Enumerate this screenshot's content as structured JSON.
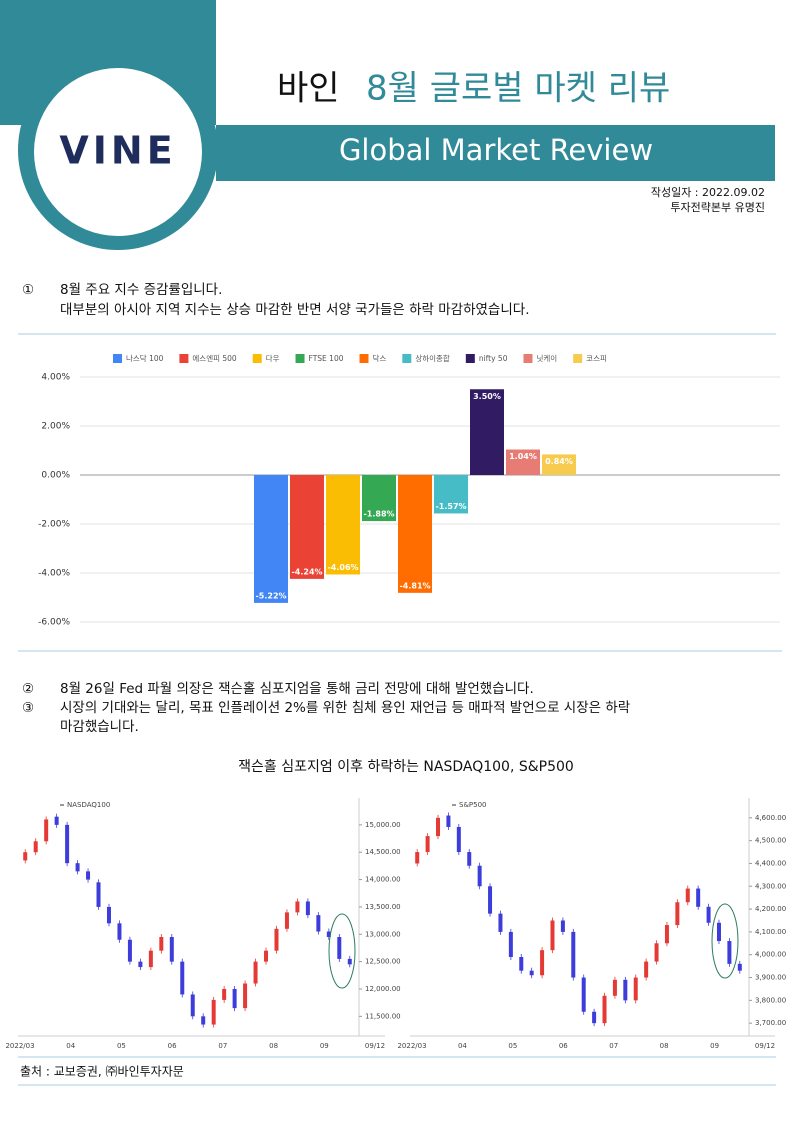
{
  "header": {
    "logo": "VINE",
    "title_prefix": "바인",
    "title": "8월 글로벌 마켓 리뷰",
    "subtitle": "Global Market Review",
    "date": "작성일자 : 2022.09.02",
    "author": "투자전략본부  유명진"
  },
  "section1": {
    "marker": "①",
    "lines": [
      "8월 주요 지수 증감률입니다.",
      "대부분의 아시아 지역 지수는  상승 마감한 반면 서양 국가들은 하락 마감하였습니다."
    ]
  },
  "section2": [
    {
      "marker": "②",
      "lines": [
        "8월 26일 Fed 파월 의장은 잭슨홀 심포지엄을 통해 금리 전망에 대해 발언했습니다."
      ]
    },
    {
      "marker": "③",
      "lines": [
        "시장의 기대와는 달리, 목표 인플레이션 2%를 위한 침체 용인 재언급 등 매파적 발언으로 시장은 하락",
        "마감했습니다."
      ]
    }
  ],
  "figure_title": "잭슨홀 심포지엄 이후 하락하는 NASDAQ100, S&P500",
  "source": "출처 : 교보증권, ㈜바인투자자문",
  "chart_data": [
    {
      "type": "bar",
      "ylim": [
        -6,
        4
      ],
      "yticks": [
        {
          "value": -6,
          "label": "-6.00%"
        },
        {
          "value": -4,
          "label": "-4.00%"
        },
        {
          "value": -2,
          "label": "-2.00%"
        },
        {
          "value": 0,
          "label": "0.00%"
        },
        {
          "value": 2,
          "label": "2.00%"
        },
        {
          "value": 4,
          "label": "4.00%"
        }
      ],
      "grid": true,
      "series": [
        {
          "name": "나스닥 100",
          "color": "#4285f4",
          "values": [
            -5.22
          ],
          "value_labels": [
            "-5.22%"
          ]
        },
        {
          "name": "에스엔피 500",
          "color": "#ea4335",
          "values": [
            -4.24
          ],
          "value_labels": [
            "-4.24%"
          ]
        },
        {
          "name": "다우",
          "color": "#fbbc04",
          "values": [
            -4.06
          ],
          "value_labels": [
            "-4.06%"
          ]
        },
        {
          "name": "FTSE 100",
          "color": "#34a853",
          "values": [
            -1.88
          ],
          "value_labels": [
            "-1.88%"
          ]
        },
        {
          "name": "닥스",
          "color": "#ff6d01",
          "values": [
            -4.81
          ],
          "value_labels": [
            "-4.81%"
          ]
        },
        {
          "name": "상하이종합",
          "color": "#46bdc6",
          "values": [
            -1.57
          ],
          "value_labels": [
            "-1.57%"
          ]
        },
        {
          "name": "nifty 50",
          "color": "#311b63",
          "values": [
            3.5
          ],
          "value_labels": [
            "3.50%"
          ]
        },
        {
          "name": "닛케이",
          "color": "#e67c73",
          "values": [
            1.04
          ],
          "value_labels": [
            "1.04%"
          ]
        },
        {
          "name": "코스피",
          "color": "#f7cb4d",
          "values": [
            0.84
          ],
          "value_labels": [
            "0.84%"
          ]
        }
      ]
    },
    {
      "type": "candlestick",
      "name": "NASDAQ100",
      "up_color": "#e53935",
      "down_color": "#3d3ddb",
      "ylim": [
        11250,
        15400
      ],
      "yticks": [
        {
          "value": 11500,
          "label": "11,500.00"
        },
        {
          "value": 12000,
          "label": "12,000.00"
        },
        {
          "value": 12500,
          "label": "12,500.00"
        },
        {
          "value": 13000,
          "label": "13,000.00"
        },
        {
          "value": 13500,
          "label": "13,500.00"
        },
        {
          "value": 14000,
          "label": "14,000.00"
        },
        {
          "value": 14500,
          "label": "14,500.00"
        },
        {
          "value": 15000,
          "label": "15,000.00"
        }
      ],
      "xlabels": [
        "2022/03",
        "04",
        "05",
        "06",
        "07",
        "08",
        "09",
        "09/12"
      ],
      "open": [
        14350,
        14500,
        14700,
        15150,
        15000,
        14300,
        14150,
        13950,
        13500,
        13200,
        12900,
        12500,
        12400,
        12700,
        12950,
        12500,
        11900,
        11500,
        11350,
        11800,
        12000,
        11650,
        12100,
        12500,
        12700,
        13100,
        13400,
        13600,
        13350,
        13050,
        12950,
        12550
      ],
      "close": [
        14500,
        14700,
        15100,
        15000,
        14300,
        14150,
        14000,
        13500,
        13200,
        12900,
        12500,
        12400,
        12700,
        12950,
        12500,
        11900,
        11500,
        11350,
        11800,
        12000,
        11650,
        12100,
        12500,
        12700,
        13100,
        13400,
        13600,
        13350,
        13050,
        12950,
        12550,
        12450
      ]
    },
    {
      "type": "candlestick",
      "name": "S&P500",
      "up_color": "#e53935",
      "down_color": "#3d3ddb",
      "ylim": [
        3670,
        4665
      ],
      "yticks": [
        {
          "value": 3700,
          "label": "3,700.00"
        },
        {
          "value": 3800,
          "label": "3,800.00"
        },
        {
          "value": 3900,
          "label": "3,900.00"
        },
        {
          "value": 4000,
          "label": "4,000.00"
        },
        {
          "value": 4100,
          "label": "4,100.00"
        },
        {
          "value": 4200,
          "label": "4,200.00"
        },
        {
          "value": 4300,
          "label": "4,300.00"
        },
        {
          "value": 4400,
          "label": "4,400.00"
        },
        {
          "value": 4500,
          "label": "4,500.00"
        },
        {
          "value": 4600,
          "label": "4,600.00"
        }
      ],
      "xlabels": [
        "2022/03",
        "04",
        "05",
        "06",
        "07",
        "08",
        "09",
        "09/12"
      ],
      "open": [
        4400,
        4450,
        4520,
        4610,
        4560,
        4450,
        4390,
        4300,
        4180,
        4100,
        3990,
        3930,
        3910,
        4020,
        4150,
        4100,
        3900,
        3750,
        3700,
        3820,
        3890,
        3800,
        3900,
        3970,
        4050,
        4130,
        4230,
        4290,
        4210,
        4140,
        4060,
        3960
      ],
      "close": [
        4450,
        4520,
        4600,
        4560,
        4450,
        4390,
        4300,
        4180,
        4100,
        3990,
        3930,
        3910,
        4020,
        4150,
        4100,
        3900,
        3750,
        3700,
        3820,
        3890,
        3800,
        3900,
        3970,
        4050,
        4130,
        4230,
        4290,
        4210,
        4140,
        4060,
        3960,
        3930
      ]
    }
  ]
}
